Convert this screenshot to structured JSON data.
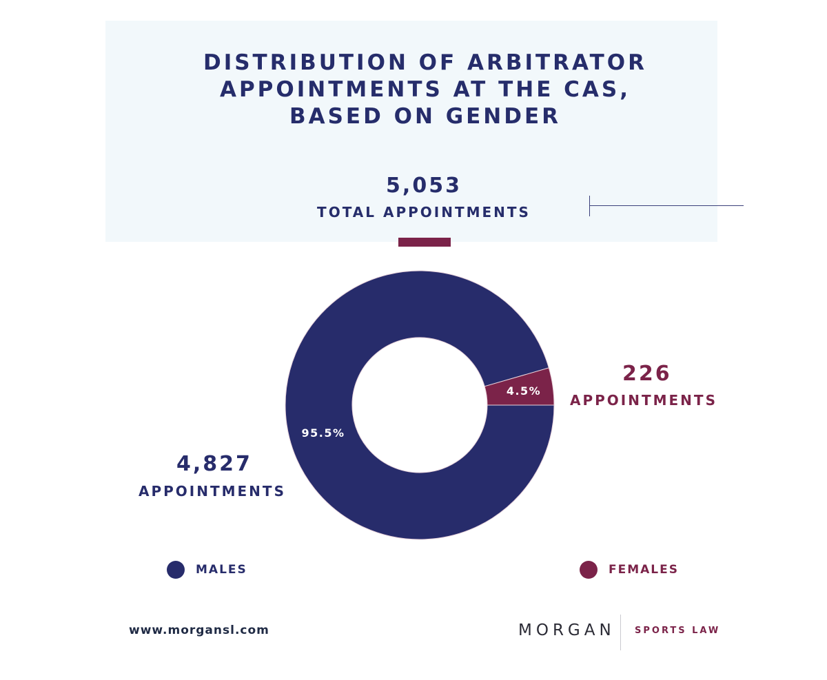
{
  "title": "DISTRIBUTION OF ARBITRATOR\nAPPOINTMENTS AT THE CAS,\nBASED ON GENDER",
  "total": {
    "value": "5,053",
    "label": "TOTAL APPOINTMENTS"
  },
  "colors": {
    "males": "#272c6b",
    "females": "#7b2349",
    "panel": "#f2f8fb",
    "divider": "#e9d4dc"
  },
  "chart_data": {
    "type": "pie",
    "donut": true,
    "categories": [
      "MALES",
      "FEMALES"
    ],
    "values": [
      4827,
      226
    ],
    "percent_labels": [
      "95.5%",
      "4.5%"
    ],
    "value_labels": [
      "4,827",
      "226"
    ],
    "unit_label": "APPOINTMENTS",
    "legend": "bottom"
  },
  "footer": {
    "url": "www.morgansl.com",
    "brand": "MORGAN",
    "brand_sub": "SPORTS LAW"
  }
}
